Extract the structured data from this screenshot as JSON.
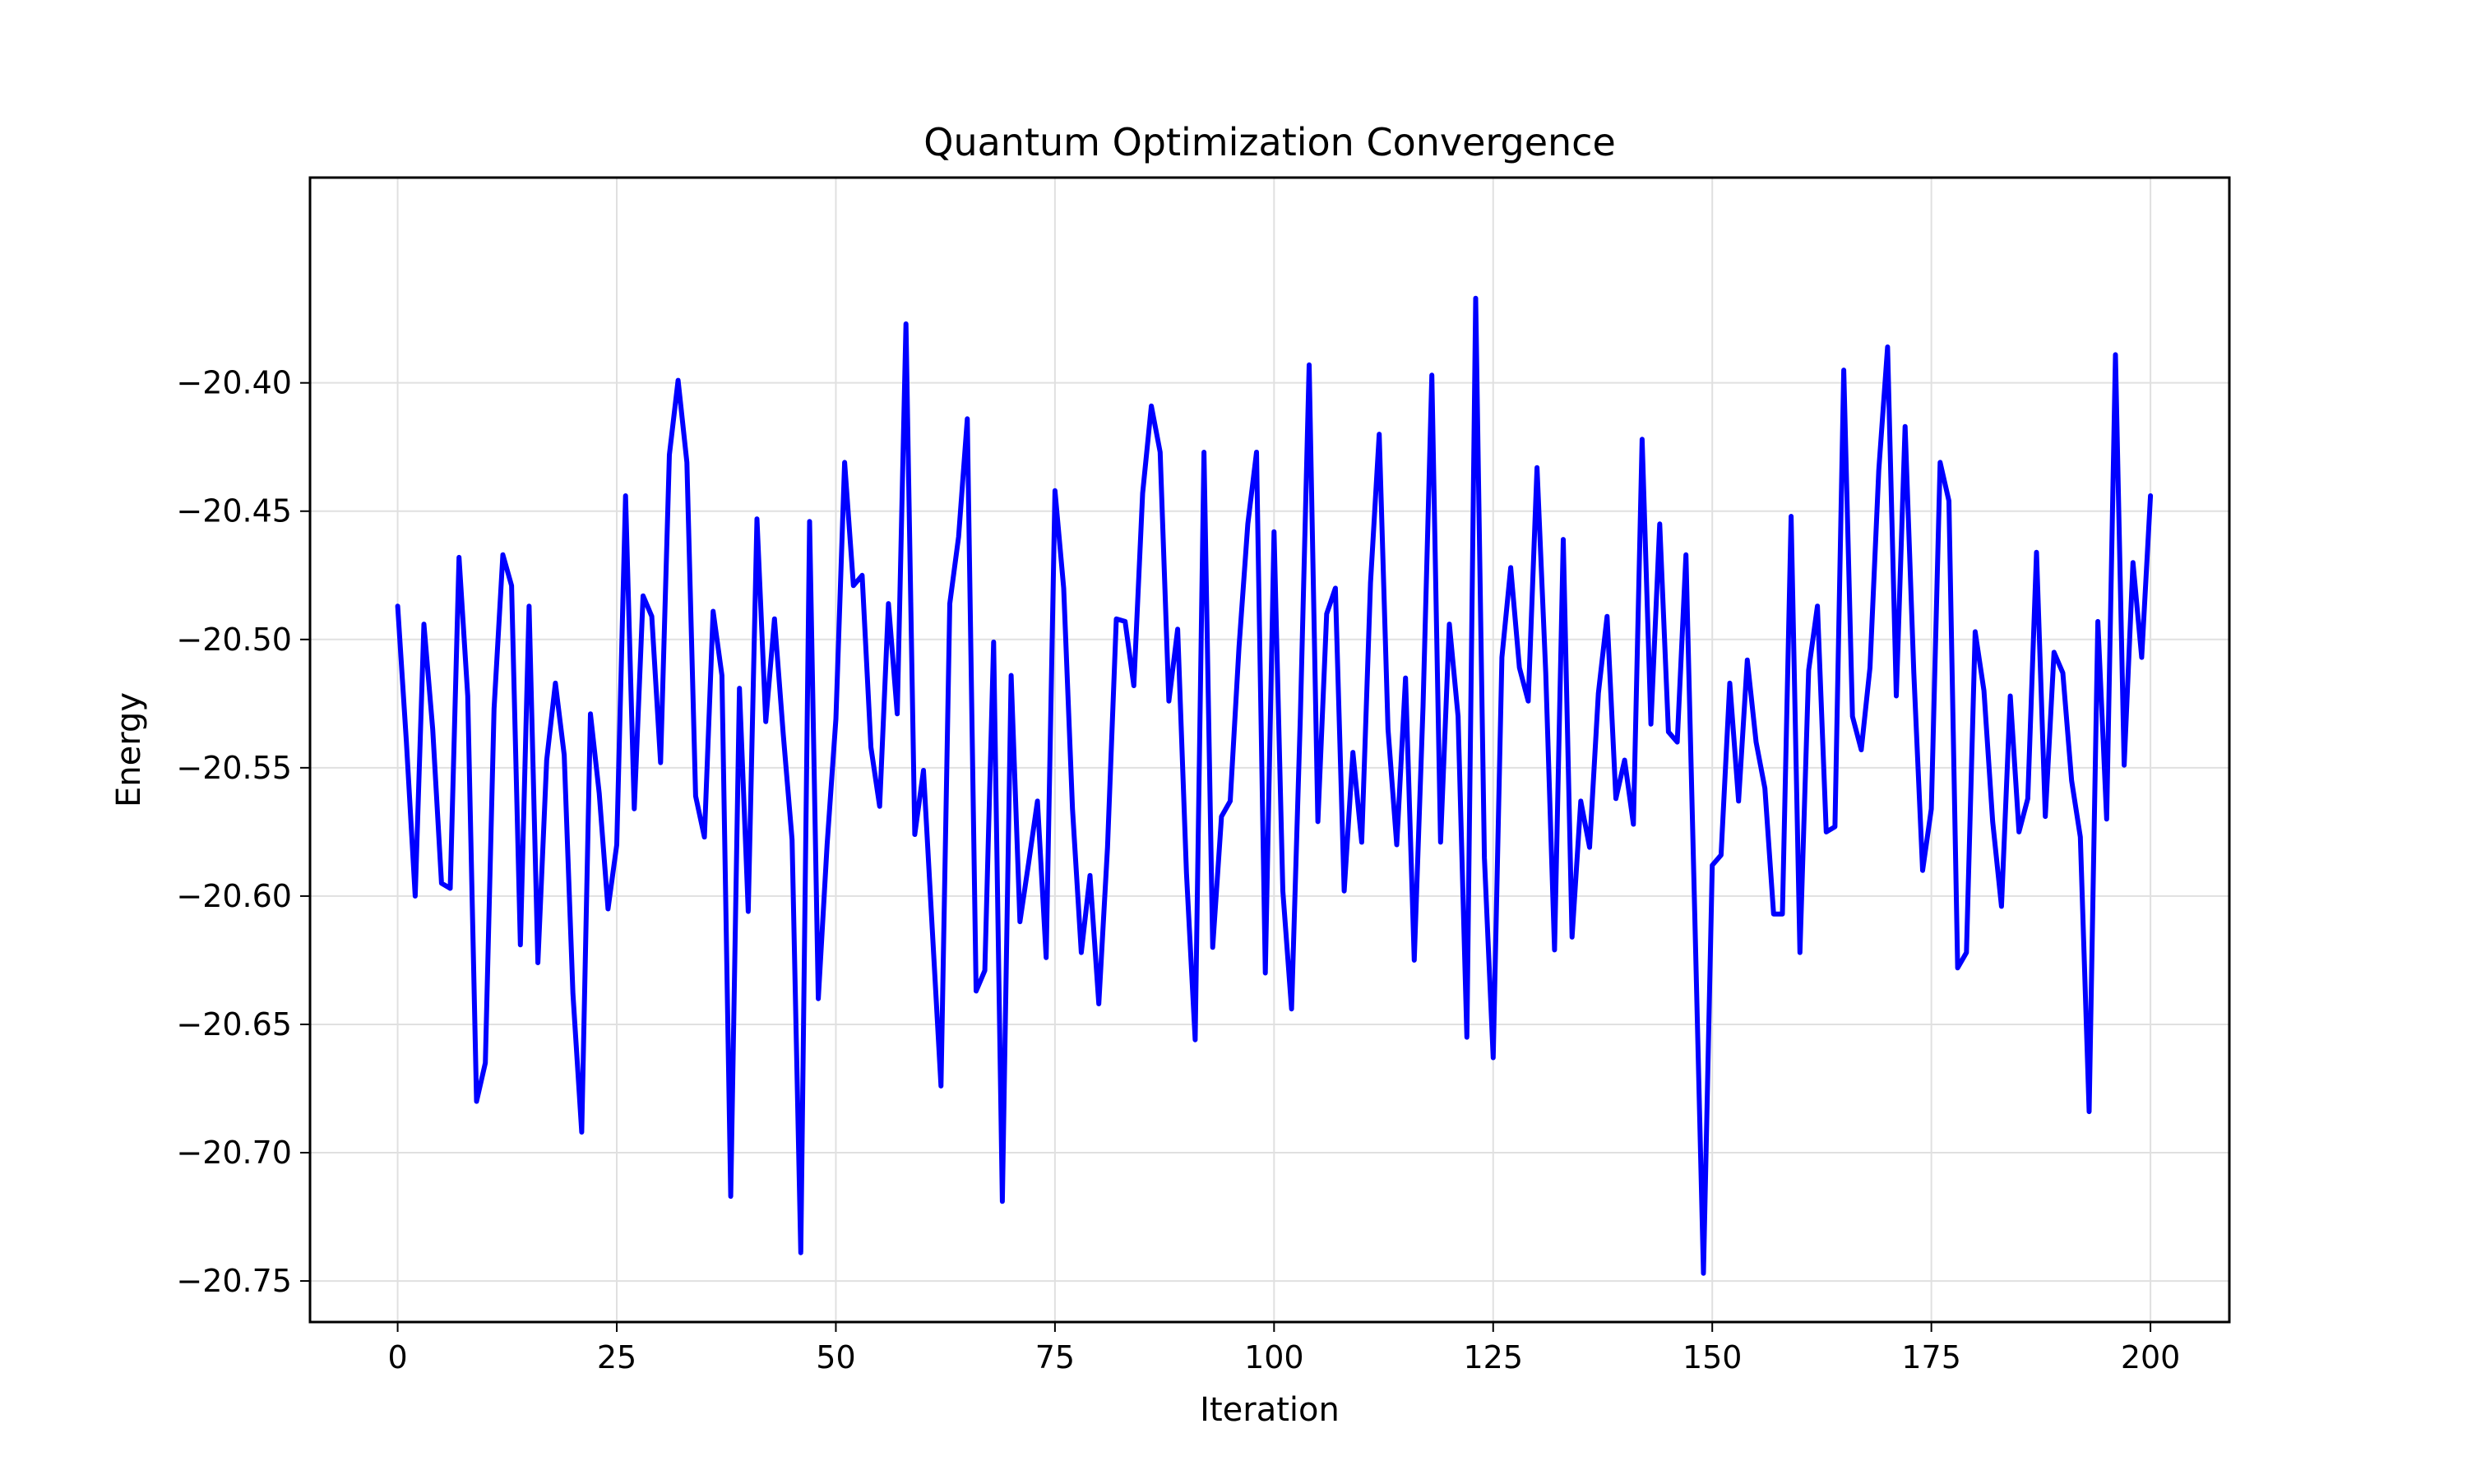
{
  "chart_data": {
    "type": "line",
    "title": "Quantum Optimization Convergence",
    "xlabel": "Iteration",
    "ylabel": "Energy",
    "xlim": [
      -10,
      209
    ],
    "ylim": [
      -20.766,
      -20.32
    ],
    "x_ticks": [
      0,
      25,
      50,
      75,
      100,
      125,
      150,
      175,
      200
    ],
    "x_tick_labels": [
      "0",
      "25",
      "50",
      "75",
      "100",
      "125",
      "150",
      "175",
      "200"
    ],
    "y_ticks": [
      -20.4,
      -20.45,
      -20.5,
      -20.55,
      -20.6,
      -20.65,
      -20.7,
      -20.75
    ],
    "y_tick_labels": [
      "−20.40",
      "−20.45",
      "−20.50",
      "−20.55",
      "−20.60",
      "−20.65",
      "−20.70",
      "−20.75"
    ],
    "grid": true,
    "series": [
      {
        "color": "#0000ff",
        "x_start": 0,
        "x_step": 1,
        "values": [
          -20.487,
          -20.54,
          -20.6,
          -20.494,
          -20.535,
          -20.595,
          -20.597,
          -20.468,
          -20.522,
          -20.68,
          -20.665,
          -20.527,
          -20.467,
          -20.479,
          -20.619,
          -20.487,
          -20.626,
          -20.547,
          -20.517,
          -20.545,
          -20.638,
          -20.692,
          -20.529,
          -20.56,
          -20.605,
          -20.58,
          -20.444,
          -20.566,
          -20.483,
          -20.491,
          -20.548,
          -20.428,
          -20.399,
          -20.431,
          -20.561,
          -20.577,
          -20.489,
          -20.514,
          -20.717,
          -20.519,
          -20.606,
          -20.453,
          -20.532,
          -20.492,
          -20.537,
          -20.578,
          -20.739,
          -20.454,
          -20.64,
          -20.58,
          -20.531,
          -20.431,
          -20.479,
          -20.475,
          -20.542,
          -20.565,
          -20.486,
          -20.529,
          -20.377,
          -20.576,
          -20.551,
          -20.613,
          -20.674,
          -20.486,
          -20.46,
          -20.414,
          -20.637,
          -20.629,
          -20.501,
          -20.719,
          -20.514,
          -20.61,
          -20.587,
          -20.563,
          -20.624,
          -20.442,
          -20.48,
          -20.566,
          -20.622,
          -20.592,
          -20.642,
          -20.581,
          -20.492,
          -20.493,
          -20.518,
          -20.443,
          -20.409,
          -20.427,
          -20.524,
          -20.496,
          -20.591,
          -20.656,
          -20.427,
          -20.62,
          -20.569,
          -20.563,
          -20.503,
          -20.455,
          -20.427,
          -20.63,
          -20.458,
          -20.598,
          -20.644,
          -20.53,
          -20.393,
          -20.571,
          -20.49,
          -20.48,
          -20.598,
          -20.544,
          -20.579,
          -20.478,
          -20.42,
          -20.535,
          -20.58,
          -20.515,
          -20.625,
          -20.526,
          -20.397,
          -20.579,
          -20.494,
          -20.53,
          -20.655,
          -20.367,
          -20.585,
          -20.663,
          -20.507,
          -20.472,
          -20.511,
          -20.524,
          -20.433,
          -20.513,
          -20.621,
          -20.461,
          -20.616,
          -20.563,
          -20.581,
          -20.521,
          -20.491,
          -20.562,
          -20.547,
          -20.572,
          -20.422,
          -20.533,
          -20.455,
          -20.536,
          -20.54,
          -20.467,
          -20.607,
          -20.747,
          -20.588,
          -20.584,
          -20.517,
          -20.563,
          -20.508,
          -20.54,
          -20.558,
          -20.607,
          -20.607,
          -20.452,
          -20.622,
          -20.512,
          -20.487,
          -20.575,
          -20.573,
          -20.395,
          -20.53,
          -20.543,
          -20.511,
          -20.434,
          -20.386,
          -20.522,
          -20.417,
          -20.513,
          -20.59,
          -20.566,
          -20.431,
          -20.446,
          -20.628,
          -20.622,
          -20.497,
          -20.52,
          -20.571,
          -20.604,
          -20.522,
          -20.575,
          -20.562,
          -20.466,
          -20.569,
          -20.505,
          -20.513,
          -20.555,
          -20.577,
          -20.684,
          -20.493,
          -20.57,
          -20.389,
          -20.549,
          -20.47,
          -20.507,
          -20.444
        ]
      }
    ]
  }
}
